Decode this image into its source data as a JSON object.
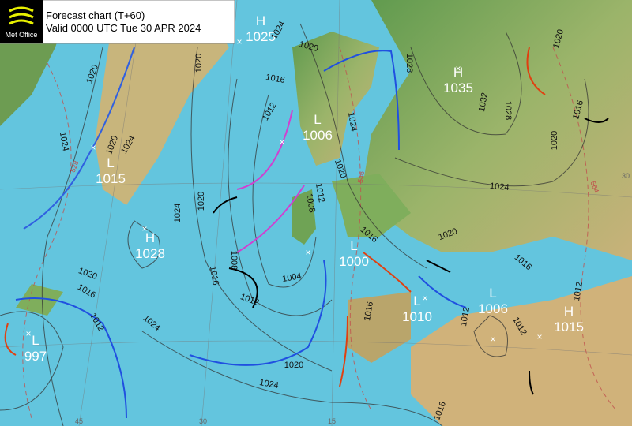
{
  "header": {
    "logo": "Met Office",
    "title": "Forecast chart (T+60)",
    "subtitle": "Valid 0000 UTC Tue 30 APR 2024"
  },
  "pressure_centers": [
    {
      "type": "H",
      "value": 1025
    },
    {
      "type": "H",
      "value": 1035
    },
    {
      "type": "L",
      "value": 1006
    },
    {
      "type": "L",
      "value": 1015
    },
    {
      "type": "H",
      "value": 1028
    },
    {
      "type": "L",
      "value": 1000
    },
    {
      "type": "L",
      "value": 1010
    },
    {
      "type": "L",
      "value": 1006
    },
    {
      "type": "H",
      "value": 1015
    },
    {
      "type": "L",
      "value": 997
    }
  ],
  "isobar_labels": [
    1020,
    1024,
    1020,
    1024,
    1020,
    1024,
    1020,
    1016,
    1012,
    1024,
    1020,
    1028,
    1032,
    1028,
    1020,
    1016,
    1020,
    1024,
    1020,
    1024,
    1012,
    1008,
    1008,
    1016,
    1012,
    1004,
    1016,
    1020,
    1016,
    1012,
    1016,
    1012,
    1012,
    1020,
    1016,
    1012,
    1024,
    1020,
    1024,
    1016
  ],
  "thickness_labels": [
    528,
    546,
    564
  ],
  "grid_labels": [
    45,
    30,
    15,
    30
  ]
}
